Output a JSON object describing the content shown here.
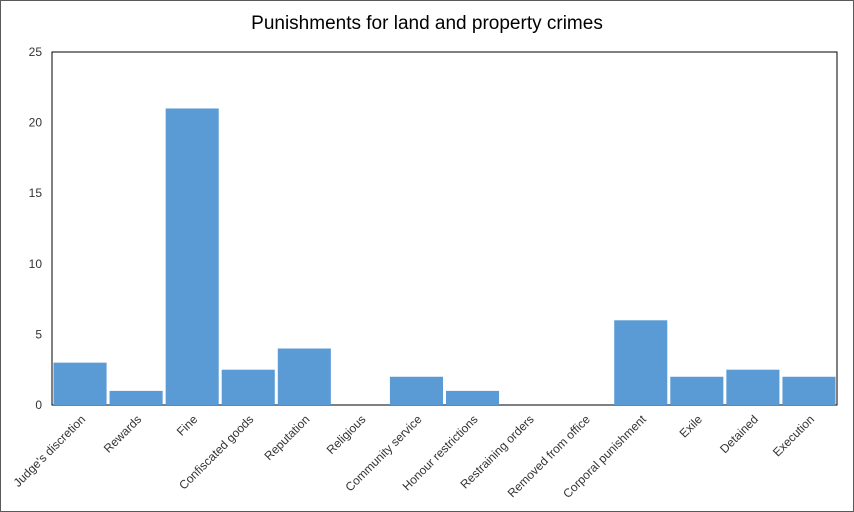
{
  "chart_data": {
    "type": "bar",
    "title": "Punishments for land and property crimes",
    "categories": [
      "Judge's discretion",
      "Rewards",
      "Fine",
      "Confiscated goods",
      "Reputation",
      "Religious",
      "Community service",
      "Honour restrictions",
      "Restraining orders",
      "Removed from office",
      "Corporal punishment",
      "Exile",
      "Detained",
      "Execution"
    ],
    "values": [
      3,
      1,
      21,
      2.5,
      4,
      0,
      2,
      1,
      0,
      0,
      6,
      2,
      2.5,
      2
    ],
    "ylim": [
      0,
      25
    ],
    "yticks": [
      "0",
      "5",
      "10",
      "15",
      "20",
      "25"
    ],
    "xlabel": "",
    "ylabel": "",
    "grid": false,
    "legend": "none",
    "bar_color": "#5b9bd5"
  }
}
